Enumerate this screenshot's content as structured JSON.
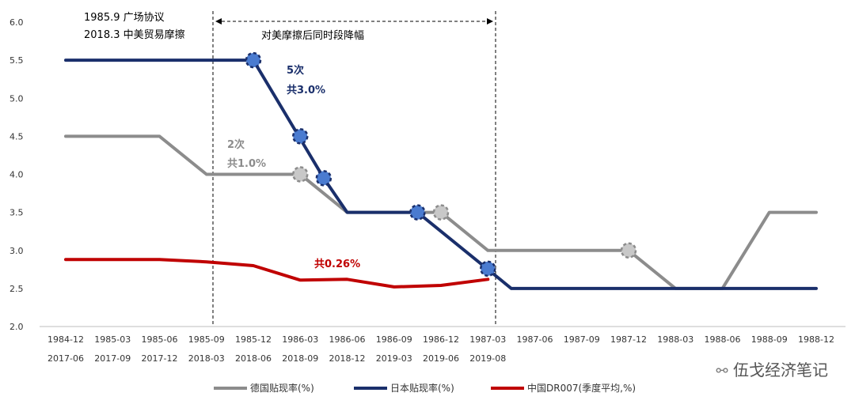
{
  "chart_data": {
    "type": "line",
    "ylim": [
      2.0,
      6.0
    ],
    "yticks": [
      "2.0",
      "2.5",
      "3.0",
      "3.5",
      "4.0",
      "4.5",
      "5.0",
      "5.5",
      "6.0"
    ],
    "categories_top": [
      "1984-12",
      "1985-03",
      "1985-06",
      "1985-09",
      "1985-12",
      "1986-03",
      "1986-06",
      "1986-09",
      "1986-12",
      "1987-03",
      "1987-06",
      "1987-09",
      "1987-12",
      "1988-03",
      "1988-06",
      "1988-09",
      "1988-12"
    ],
    "categories_bottom": [
      "2017-06",
      "2017-09",
      "2017-12",
      "2018-03",
      "2018-06",
      "2018-09",
      "2018-12",
      "2019-03",
      "2019-06",
      "2019-08",
      "",
      "",
      "",
      "",
      "",
      "",
      ""
    ],
    "series": [
      {
        "name": "德国贴现率(%)",
        "color": "#8c8c8c",
        "x": [
          0,
          2,
          3,
          5,
          6,
          8,
          9,
          12,
          13,
          14,
          15,
          16
        ],
        "values": [
          4.5,
          4.5,
          4.0,
          4.0,
          3.5,
          3.5,
          3.0,
          3.0,
          2.5,
          2.5,
          3.5,
          3.5
        ],
        "markers": [
          [
            5,
            4.0
          ],
          [
            8,
            3.5
          ],
          [
            12,
            3.0
          ]
        ]
      },
      {
        "name": "日本贴现率(%)",
        "color": "#1a2f6b",
        "x": [
          0,
          4,
          5.5,
          6,
          7.5,
          9.5,
          16
        ],
        "values": [
          5.5,
          5.5,
          3.95,
          3.5,
          3.5,
          2.5,
          2.5
        ],
        "markers": [
          [
            4,
            5.5
          ],
          [
            5,
            4.5
          ],
          [
            5.5,
            3.95
          ],
          [
            7.5,
            3.5
          ],
          [
            9,
            2.76
          ]
        ]
      },
      {
        "name": "中国DR007(季度平均,%)",
        "color": "#c00000",
        "x": [
          0,
          1,
          2,
          3,
          4,
          5,
          6,
          7,
          8,
          9
        ],
        "values": [
          2.88,
          2.88,
          2.88,
          2.85,
          2.8,
          2.61,
          2.62,
          2.52,
          2.54,
          2.62
        ],
        "markers": []
      }
    ],
    "annotations": {
      "event1": "1985.9  广场协议",
      "event2": "2018.3  中美贸易摩擦",
      "span_label": "对美摩擦后同时段降幅",
      "japan_count": "5次",
      "japan_total": "共3.0%",
      "germany_count": "2次",
      "germany_total": "共1.0%",
      "china_total": "共0.26%"
    },
    "watermark": "伍戈经济笔记"
  }
}
